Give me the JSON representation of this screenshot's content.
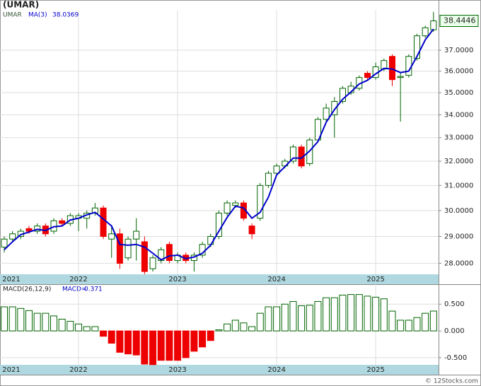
{
  "chart_data": [
    {
      "type": "candlestick",
      "title": "(UMAR)",
      "series_name": "UMAR",
      "categories": [
        "2021",
        null,
        null,
        null,
        null,
        null,
        null,
        null,
        null,
        "2022",
        null,
        null,
        null,
        null,
        null,
        null,
        null,
        null,
        null,
        null,
        null,
        "2023",
        null,
        null,
        null,
        null,
        null,
        null,
        null,
        null,
        null,
        null,
        null,
        "2024",
        null,
        null,
        null,
        null,
        null,
        null,
        null,
        null,
        null,
        null,
        null,
        "2025",
        null,
        null,
        null,
        null,
        null,
        null,
        null
      ],
      "open": [
        28.6,
        28.9,
        29.0,
        29.3,
        29.2,
        29.4,
        29.2,
        29.6,
        29.5,
        29.7,
        29.7,
        29.9,
        30.1,
        28.9,
        29.1,
        28.2,
        28.9,
        28.8,
        27.8,
        28.1,
        28.7,
        28.1,
        28.3,
        28.1,
        28.3,
        28.7,
        29.0,
        29.9,
        30.2,
        30.3,
        29.4,
        29.7,
        31.0,
        31.5,
        31.8,
        32.0,
        32.6,
        31.9,
        32.9,
        33.8,
        34.0,
        34.6,
        35.0,
        35.2,
        35.9,
        35.7,
        36.1,
        36.7,
        35.7,
        35.8,
        36.6,
        37.7,
        38.0
      ],
      "high": [
        29.0,
        29.2,
        29.3,
        29.4,
        29.5,
        29.5,
        29.7,
        29.7,
        29.9,
        29.9,
        30.0,
        30.3,
        30.2,
        29.4,
        29.3,
        29.0,
        29.7,
        29.0,
        28.3,
        28.6,
        28.8,
        28.4,
        28.4,
        28.4,
        28.8,
        29.1,
        30.0,
        30.4,
        30.4,
        30.4,
        29.5,
        31.1,
        31.6,
        31.9,
        32.1,
        32.7,
        32.7,
        33.0,
        33.9,
        34.5,
        34.8,
        35.3,
        35.5,
        35.8,
        36.0,
        36.4,
        36.6,
        36.8,
        35.9,
        36.8,
        37.8,
        38.2,
        38.9
      ],
      "low": [
        28.4,
        28.8,
        28.9,
        29.1,
        29.1,
        29.0,
        29.1,
        29.4,
        29.4,
        29.2,
        29.3,
        29.8,
        28.9,
        28.2,
        27.8,
        28.1,
        28.1,
        27.6,
        27.7,
        28.0,
        28.0,
        28.0,
        28.0,
        27.7,
        28.2,
        28.6,
        28.9,
        29.8,
        30.1,
        29.6,
        28.9,
        29.6,
        30.9,
        31.4,
        31.7,
        31.9,
        31.7,
        31.8,
        32.8,
        33.7,
        33.0,
        34.5,
        34.9,
        35.1,
        35.6,
        35.6,
        36.0,
        35.3,
        33.7,
        35.7,
        36.5,
        37.6,
        37.9
      ],
      "close": [
        28.9,
        29.1,
        29.2,
        29.2,
        29.4,
        29.1,
        29.6,
        29.5,
        29.8,
        29.8,
        29.9,
        30.1,
        29.0,
        29.1,
        28.0,
        28.9,
        29.2,
        27.7,
        28.2,
        28.5,
        28.1,
        28.3,
        28.1,
        28.3,
        28.7,
        29.0,
        29.9,
        30.3,
        30.3,
        29.7,
        29.1,
        31.0,
        31.5,
        31.8,
        32.0,
        32.6,
        31.8,
        32.9,
        33.8,
        34.3,
        34.6,
        35.2,
        35.3,
        35.7,
        35.7,
        36.2,
        36.5,
        35.6,
        35.75,
        36.7,
        37.7,
        38.1,
        38.4446
      ],
      "up_color": "#006400",
      "down_color": "#ee0000",
      "ma": {
        "name": "MA(3)",
        "color": "#0000cc",
        "values": [
          28.5,
          28.8,
          29.07,
          29.17,
          29.27,
          29.23,
          29.37,
          29.4,
          29.63,
          29.7,
          29.83,
          29.93,
          29.67,
          29.4,
          28.7,
          28.67,
          28.7,
          28.6,
          28.37,
          28.13,
          28.27,
          28.3,
          28.17,
          28.23,
          28.37,
          28.67,
          29.2,
          29.73,
          30.17,
          30.1,
          29.7,
          29.93,
          30.53,
          31.43,
          31.77,
          32.13,
          32.13,
          32.43,
          32.83,
          33.67,
          34.23,
          34.7,
          35.03,
          35.4,
          35.57,
          35.87,
          36.13,
          36.1,
          35.93,
          36.0,
          36.7,
          37.5,
          38.0369
        ]
      },
      "log_scale": true,
      "grid": true,
      "ylim": [
        27.6,
        39.0
      ],
      "yticks": [
        {
          "value": 28,
          "label": "28.0000"
        },
        {
          "value": 29,
          "label": "29.0000"
        },
        {
          "value": 30,
          "label": "30.0000"
        },
        {
          "value": 31,
          "label": "31.0000"
        },
        {
          "value": 32,
          "label": "32.0000"
        },
        {
          "value": 33,
          "label": "33.0000"
        },
        {
          "value": 34,
          "label": "34.0000"
        },
        {
          "value": 35,
          "label": "35.0000"
        },
        {
          "value": 36,
          "label": "36.0000"
        },
        {
          "value": 37,
          "label": "37.0000"
        }
      ]
    },
    {
      "type": "bar",
      "title": "MACD(26,12,9)",
      "value_prefix": "MACD=",
      "categories": [
        "2021",
        null,
        null,
        null,
        null,
        null,
        null,
        null,
        null,
        "2022",
        null,
        null,
        null,
        null,
        null,
        null,
        null,
        null,
        null,
        null,
        null,
        "2023",
        null,
        null,
        null,
        null,
        null,
        null,
        null,
        null,
        null,
        null,
        null,
        "2024",
        null,
        null,
        null,
        null,
        null,
        null,
        null,
        null,
        null,
        null,
        null,
        "2025",
        null,
        null,
        null,
        null,
        null,
        null,
        null
      ],
      "values": [
        0.45,
        0.45,
        0.42,
        0.38,
        0.33,
        0.33,
        0.28,
        0.22,
        0.18,
        0.13,
        0.08,
        0.08,
        -0.1,
        -0.23,
        -0.4,
        -0.43,
        -0.45,
        -0.62,
        -0.63,
        -0.55,
        -0.55,
        -0.55,
        -0.5,
        -0.38,
        -0.3,
        -0.18,
        0.02,
        0.13,
        0.2,
        0.15,
        0.08,
        0.33,
        0.45,
        0.45,
        0.5,
        0.55,
        0.47,
        0.48,
        0.55,
        0.62,
        0.62,
        0.67,
        0.68,
        0.68,
        0.65,
        0.63,
        0.6,
        0.37,
        0.2,
        0.2,
        0.25,
        0.33,
        0.371
      ],
      "pos_color": "#006400",
      "neg_color": "#ee0000",
      "grid": true,
      "ylim": [
        -0.633,
        0.873
      ],
      "yticks": [
        {
          "value": 0.5,
          "label": "0.500"
        },
        {
          "value": 0,
          "label": "0.000"
        },
        {
          "value": -0.5,
          "label": "-0.500"
        }
      ]
    }
  ],
  "footer": "© 12Stocks.com"
}
